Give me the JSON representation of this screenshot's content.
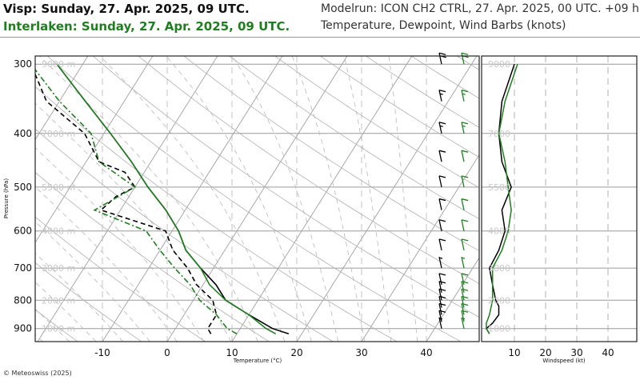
{
  "header": {
    "title_visp": "Visp: Sunday, 27. Apr. 2025, 09 UTC.",
    "title_interlaken": "Interlaken: Sunday, 27. Apr. 2025, 09 UTC.",
    "modelrun": "Modelrun: ICON CH2 CTRL, 27. Apr. 2025, 00 UTC. +09 h",
    "variables": "Temperature, Dewpoint, Wind Barbs (knots)"
  },
  "footer": {
    "credit": "© Meteoswiss (2025)"
  },
  "colors": {
    "visp": "#000000",
    "interlaken": "#1f7f1f",
    "grid": "#aaaaaa"
  },
  "chart_data": [
    {
      "type": "line",
      "subtype": "skew-t log-p",
      "xlabel": "Temperature (°C)",
      "ylabel": "Pressure (hPa)",
      "xlim": [
        -20,
        47
      ],
      "ylim": [
        950,
        290
      ],
      "x_ticks": [
        "-10",
        "0",
        "10",
        "20",
        "30",
        "40"
      ],
      "p_ticks": [
        "300",
        "400",
        "500",
        "600",
        "700",
        "800",
        "900"
      ],
      "height_labels": [
        "9000 m",
        "7000 m",
        "5500 m",
        "4000 m",
        "3000 m",
        "2000 m",
        "1000 m"
      ],
      "series": [
        {
          "name": "Visp",
          "kind": "temperature",
          "style": "solid",
          "color": "#000000",
          "pressure": [
            920,
            900,
            850,
            800,
            750,
            700,
            650,
            600,
            550,
            500,
            450,
            400,
            350,
            300
          ],
          "values": [
            18,
            15,
            10,
            5,
            2,
            -2,
            -6,
            -9,
            -13,
            -18,
            -23,
            -29,
            -36,
            -44
          ]
        },
        {
          "name": "Visp",
          "kind": "dewpoint",
          "style": "dashed",
          "color": "#000000",
          "pressure": [
            920,
            900,
            850,
            800,
            750,
            700,
            650,
            600,
            550,
            520,
            500,
            470,
            450,
            400,
            350,
            300
          ],
          "values": [
            6,
            5,
            5,
            3,
            -1,
            -4,
            -8,
            -11,
            -23,
            -22,
            -20,
            -23,
            -28,
            -33,
            -42,
            -48
          ]
        },
        {
          "name": "Interlaken",
          "kind": "temperature",
          "style": "solid",
          "color": "#1f7f1f",
          "pressure": [
            920,
            900,
            850,
            800,
            750,
            700,
            650,
            600,
            550,
            500,
            450,
            400,
            350,
            300
          ],
          "values": [
            16,
            14,
            10,
            5,
            1,
            -2,
            -6,
            -9,
            -13,
            -18,
            -23,
            -29,
            -36,
            -44
          ]
        },
        {
          "name": "Interlaken",
          "kind": "dewpoint",
          "style": "dash-dot",
          "color": "#1f7f1f",
          "pressure": [
            920,
            900,
            850,
            800,
            750,
            700,
            650,
            600,
            550,
            500,
            450,
            400,
            350,
            300
          ],
          "values": [
            10,
            8,
            5,
            1,
            -2,
            -6,
            -10,
            -14,
            -24,
            -20,
            -28,
            -32,
            -40,
            -48
          ]
        }
      ],
      "wind_barbs": {
        "pressure": [
          900,
          875,
          850,
          825,
          800,
          775,
          750,
          700,
          650,
          600,
          550,
          500,
          450,
          400,
          350,
          300
        ],
        "speed_kt": [
          5,
          10,
          10,
          10,
          10,
          10,
          10,
          5,
          10,
          10,
          10,
          10,
          10,
          15,
          15,
          20
        ]
      }
    },
    {
      "type": "line",
      "xlabel": "Windspeed (kt)",
      "xlim": [
        0,
        45
      ],
      "ylim": [
        950,
        290
      ],
      "x_ticks": [
        "10",
        "20",
        "30",
        "40"
      ],
      "height_labels": [
        "9000",
        "7000",
        "5500",
        "4000",
        "3000",
        "2000",
        "1000"
      ],
      "series": [
        {
          "name": "Visp",
          "color": "#000000",
          "pressure": [
            920,
            900,
            880,
            850,
            820,
            800,
            750,
            700,
            650,
            600,
            550,
            500,
            450,
            400,
            350,
            300
          ],
          "values": [
            2,
            1,
            3,
            5,
            5,
            4,
            3,
            2,
            5,
            7,
            6,
            9,
            6,
            5,
            6,
            10
          ]
        },
        {
          "name": "Interlaken",
          "color": "#1f7f1f",
          "pressure": [
            920,
            900,
            880,
            850,
            800,
            750,
            700,
            650,
            600,
            550,
            500,
            450,
            400,
            350,
            300
          ],
          "values": [
            2,
            1,
            1,
            2,
            3,
            3,
            3,
            6,
            8,
            9,
            8,
            7,
            5,
            7,
            11
          ]
        }
      ]
    }
  ]
}
